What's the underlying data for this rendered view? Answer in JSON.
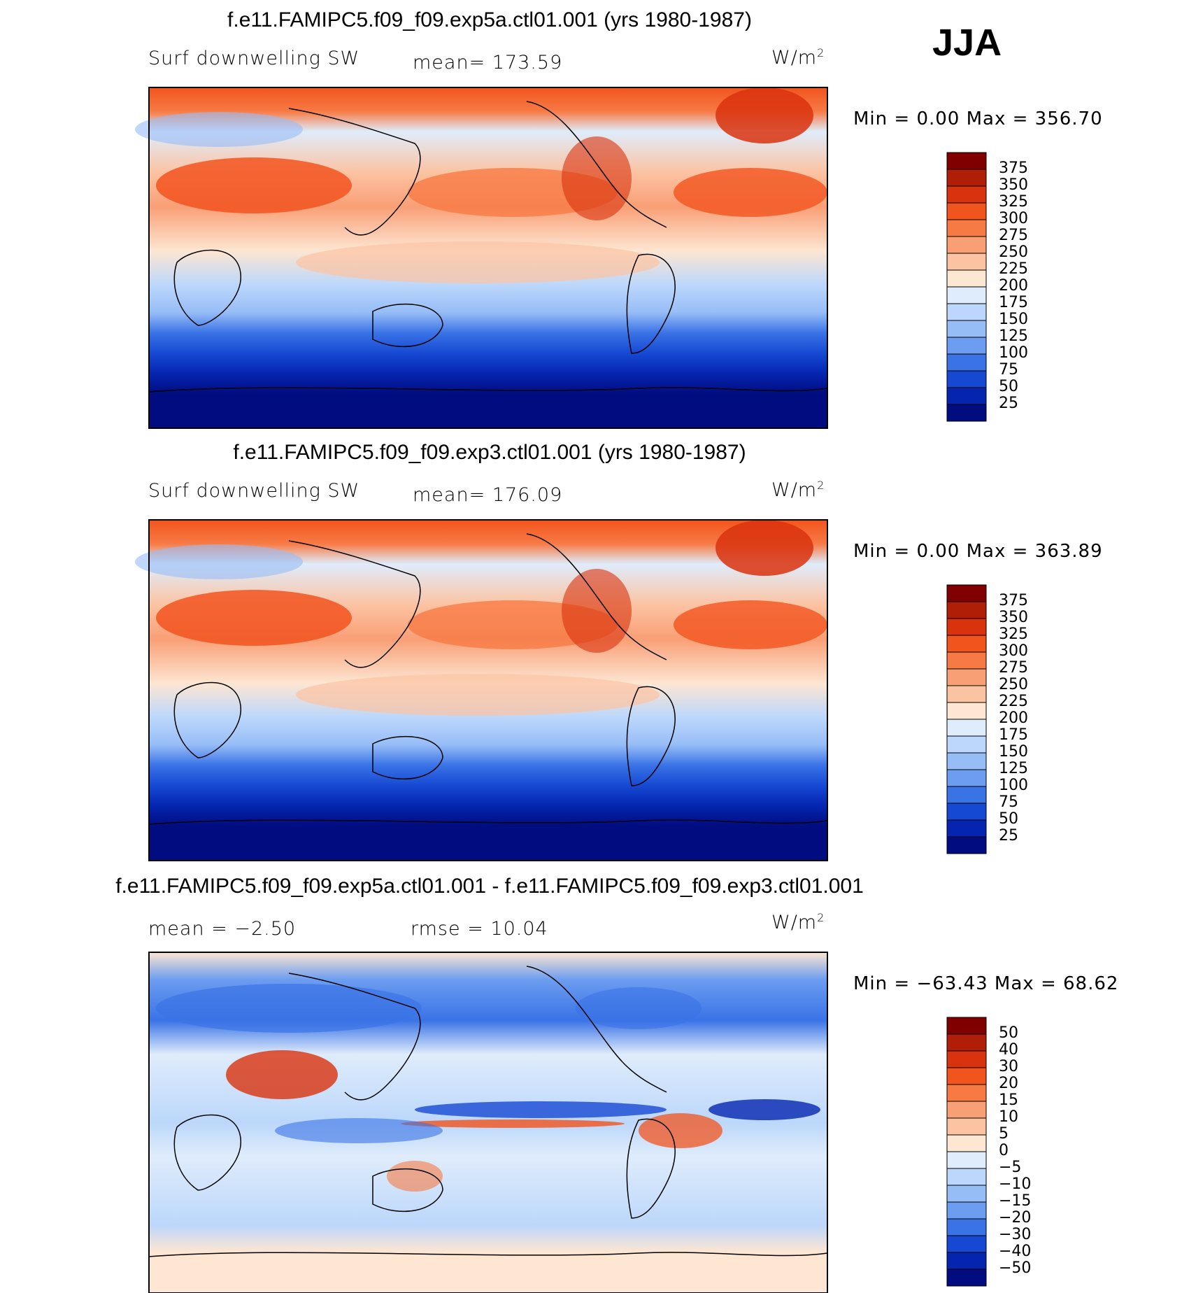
{
  "season": "JJA",
  "panels": [
    {
      "title": "f.e11.FAMIPC5.f09_f09.exp5a.ctl01.001 (yrs 1980-1987)",
      "left_label": "Surf  downwelling  SW",
      "center_label": "mean=  173.59",
      "units_text": "W/m",
      "units_sup": "2",
      "minmax": "Min  =     0.00  Max  =  356.70",
      "colorbar_labels": [
        "375",
        "350",
        "325",
        "300",
        "275",
        "250",
        "225",
        "200",
        "175",
        "150",
        "125",
        "100",
        "75",
        "50",
        "25"
      ],
      "colorbar_colors": [
        "#800000",
        "#b01e08",
        "#d9320e",
        "#f2541e",
        "#f77a45",
        "#f99f76",
        "#fcc3a2",
        "#fde6d2",
        "#dfecfb",
        "#bcd7fb",
        "#97bdf7",
        "#6c9df0",
        "#3a73e6",
        "#1649d3",
        "#0525b0",
        "#000c80"
      ]
    },
    {
      "title": "f.e11.FAMIPC5.f09_f09.exp3.ctl01.001 (yrs 1980-1987)",
      "left_label": "Surf  downwelling  SW",
      "center_label": "mean=  176.09",
      "units_text": "W/m",
      "units_sup": "2",
      "minmax": "Min  =     0.00  Max  =  363.89",
      "colorbar_labels": [
        "375",
        "350",
        "325",
        "300",
        "275",
        "250",
        "225",
        "200",
        "175",
        "150",
        "125",
        "100",
        "75",
        "50",
        "25"
      ],
      "colorbar_colors": [
        "#800000",
        "#b01e08",
        "#d9320e",
        "#f2541e",
        "#f77a45",
        "#f99f76",
        "#fcc3a2",
        "#fde6d2",
        "#dfecfb",
        "#bcd7fb",
        "#97bdf7",
        "#6c9df0",
        "#3a73e6",
        "#1649d3",
        "#0525b0",
        "#000c80"
      ]
    },
    {
      "title": "f.e11.FAMIPC5.f09_f09.exp5a.ctl01.001 - f.e11.FAMIPC5.f09_f09.exp3.ctl01.001",
      "left_label": "mean  =   −2.50",
      "center_label": "rmse  =   10.04",
      "units_text": "W/m",
      "units_sup": "2",
      "minmax": "Min  = −63.43  Max  =   68.62",
      "colorbar_labels": [
        "50",
        "40",
        "30",
        "20",
        "15",
        "10",
        "5",
        "0",
        "−5",
        "−10",
        "−15",
        "−20",
        "−30",
        "−40",
        "−50"
      ],
      "colorbar_colors": [
        "#800000",
        "#b01e08",
        "#d9320e",
        "#f2541e",
        "#f77a45",
        "#f99f76",
        "#fcc3a2",
        "#fde6d2",
        "#dfecfb",
        "#bcd7fb",
        "#97bdf7",
        "#6c9df0",
        "#3a73e6",
        "#1649d3",
        "#0525b0",
        "#000c80"
      ]
    }
  ]
}
